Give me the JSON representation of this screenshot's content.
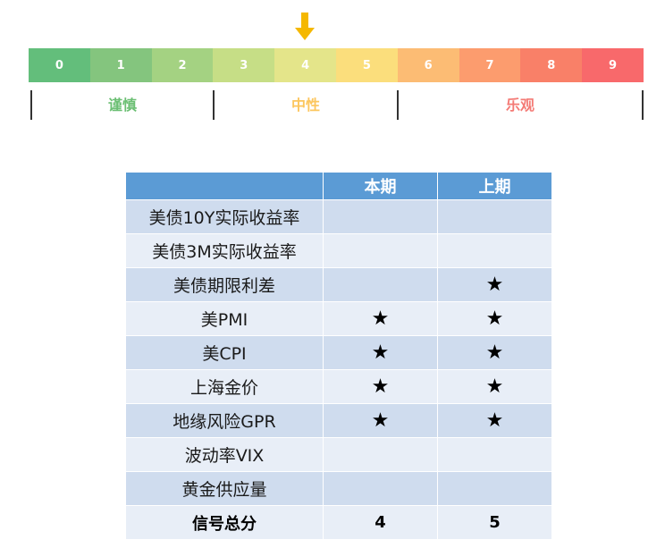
{
  "indicator": {
    "selected_value": 4,
    "arrow_color": "#f5b800"
  },
  "scale": {
    "cells": [
      {
        "label": "0",
        "color": "#63be7b"
      },
      {
        "label": "1",
        "color": "#84c57e"
      },
      {
        "label": "2",
        "color": "#a4d282"
      },
      {
        "label": "3",
        "color": "#c6de86"
      },
      {
        "label": "4",
        "color": "#e4e58a"
      },
      {
        "label": "5",
        "color": "#fbde7c"
      },
      {
        "label": "6",
        "color": "#fcbc74"
      },
      {
        "label": "7",
        "color": "#fc9c6e"
      },
      {
        "label": "8",
        "color": "#f98068"
      },
      {
        "label": "9",
        "color": "#f8696b"
      }
    ],
    "zones": [
      {
        "label": "谨慎",
        "color": "#6bbf73"
      },
      {
        "label": "中性",
        "color": "#fcc65e"
      },
      {
        "label": "乐观",
        "color": "#f47a75"
      }
    ]
  },
  "table": {
    "headers": [
      "",
      "本期",
      "上期"
    ],
    "rows": [
      {
        "name": "美债10Y实际收益率",
        "current": "",
        "previous": ""
      },
      {
        "name": "美债3M实际收益率",
        "current": "",
        "previous": ""
      },
      {
        "name": "美债期限利差",
        "current": "",
        "previous": "★"
      },
      {
        "name": "美PMI",
        "current": "★",
        "previous": "★"
      },
      {
        "name": "美CPI",
        "current": "★",
        "previous": "★"
      },
      {
        "name": "上海金价",
        "current": "★",
        "previous": "★"
      },
      {
        "name": "地缘风险GPR",
        "current": "★",
        "previous": "★"
      },
      {
        "name": "波动率VIX",
        "current": "",
        "previous": ""
      },
      {
        "name": "黄金供应量",
        "current": "",
        "previous": ""
      }
    ],
    "total": {
      "name": "信号总分",
      "current": "4",
      "previous": "5"
    }
  }
}
